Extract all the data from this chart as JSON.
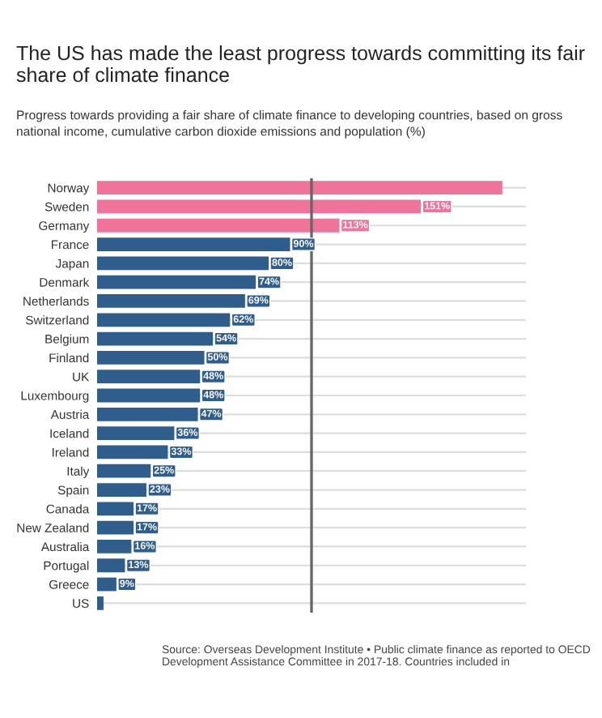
{
  "chart_data": {
    "type": "bar",
    "orientation": "horizontal",
    "title": "The US has made the least progress towards committing its fair share of climate finance",
    "subtitle": "Progress towards providing a fair share of climate finance to developing countries, based on gross national income, cumulative carbon dioxide emissions and population (%)",
    "categories": [
      "Norway",
      "Sweden",
      "Germany",
      "France",
      "Japan",
      "Denmark",
      "Netherlands",
      "Switzerland",
      "Belgium",
      "Finland",
      "UK",
      "Luxembourg",
      "Austria",
      "Iceland",
      "Ireland",
      "Italy",
      "Spain",
      "Canada",
      "New Zealand",
      "Australia",
      "Portugal",
      "Greece",
      "US"
    ],
    "values": [
      189,
      151,
      113,
      90,
      80,
      74,
      69,
      62,
      54,
      50,
      48,
      48,
      47,
      36,
      33,
      25,
      23,
      17,
      17,
      16,
      13,
      9,
      3
    ],
    "value_labels": [
      null,
      "151%",
      "113%",
      "90%",
      "80%",
      "74%",
      "69%",
      "62%",
      "54%",
      "50%",
      "48%",
      "48%",
      "47%",
      "36%",
      "33%",
      "25%",
      "23%",
      "17%",
      "17%",
      "16%",
      "13%",
      "9%",
      null
    ],
    "colors": [
      "#f0739c",
      "#f0739c",
      "#f0739c",
      "#2f5d8c",
      "#2f5d8c",
      "#2f5d8c",
      "#2f5d8c",
      "#2f5d8c",
      "#2f5d8c",
      "#2f5d8c",
      "#2f5d8c",
      "#2f5d8c",
      "#2f5d8c",
      "#2f5d8c",
      "#2f5d8c",
      "#2f5d8c",
      "#2f5d8c",
      "#2f5d8c",
      "#2f5d8c",
      "#2f5d8c",
      "#2f5d8c",
      "#2f5d8c",
      "#2f5d8c"
    ],
    "xlim": [
      0,
      200
    ],
    "tick_labels": "y",
    "grid": "y",
    "ref_lines": [
      {
        "axis": "x",
        "value": 100,
        "color": "#666666"
      }
    ],
    "annotations": [
      "Source: Overseas Development Institute • Public climate finance as reported to OECD Development Assistance Committee in 2017-18. Countries included in"
    ]
  }
}
